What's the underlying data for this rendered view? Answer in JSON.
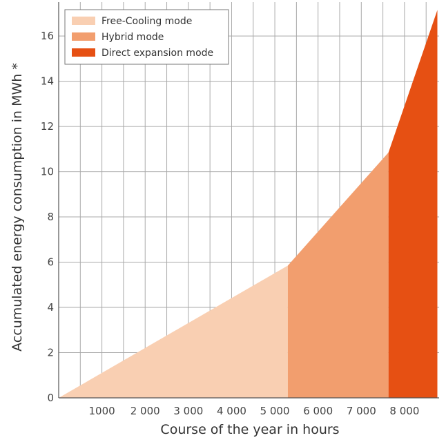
{
  "chart_data": {
    "type": "area",
    "xlabel": "Course of the year in hours",
    "ylabel": "Accumulated energy consumption in MWh *",
    "xlim": [
      0,
      8800
    ],
    "ylim": [
      0,
      17.5
    ],
    "grid": true,
    "legend_position": "top-left",
    "x_ticks": [
      {
        "value": 1000,
        "label": "1000"
      },
      {
        "value": 2000,
        "label": "2 000"
      },
      {
        "value": 3000,
        "label": "3 000"
      },
      {
        "value": 4000,
        "label": "4 000"
      },
      {
        "value": 5000,
        "label": "5 000"
      },
      {
        "value": 6000,
        "label": "6 000"
      },
      {
        "value": 7000,
        "label": "7 000"
      },
      {
        "value": 8000,
        "label": "8 000"
      }
    ],
    "y_ticks": [
      {
        "value": 0,
        "label": "0"
      },
      {
        "value": 2,
        "label": "2"
      },
      {
        "value": 4,
        "label": "4"
      },
      {
        "value": 6,
        "label": "6"
      },
      {
        "value": 8,
        "label": "8"
      },
      {
        "value": 10,
        "label": "10"
      },
      {
        "value": 12,
        "label": "12"
      },
      {
        "value": 14,
        "label": "14"
      },
      {
        "value": 16,
        "label": "16"
      }
    ],
    "series": [
      {
        "name": "Free-Cooling mode",
        "color": "#f9cfb2",
        "x": [
          0,
          5300
        ],
        "y": [
          0,
          5.85
        ]
      },
      {
        "name": "Hybrid mode",
        "color": "#f29e6e",
        "x": [
          5300,
          7630
        ],
        "y": [
          5.85,
          10.85
        ]
      },
      {
        "name": "Direct expansion mode",
        "color": "#e65013",
        "x": [
          7630,
          8760
        ],
        "y": [
          10.85,
          17.15
        ]
      }
    ]
  }
}
